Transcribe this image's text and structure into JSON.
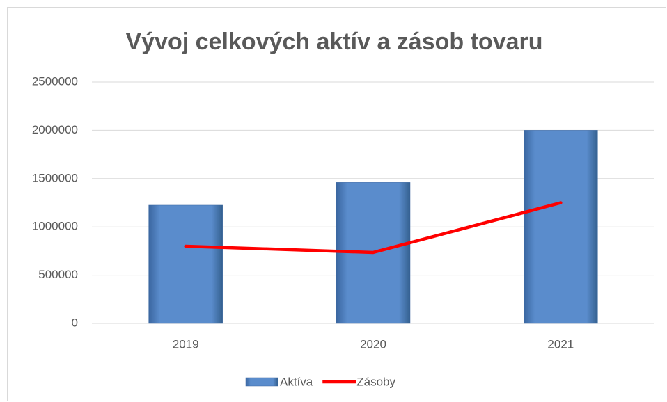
{
  "chart_data": {
    "type": "bar",
    "title": "Vývoj celkových aktív a zásob tovaru",
    "categories": [
      "2019",
      "2020",
      "2021"
    ],
    "series": [
      {
        "name": "Aktíva",
        "type": "bar",
        "color": "#4f81bd",
        "values": [
          1225000,
          1460000,
          2000000
        ]
      },
      {
        "name": "Zásoby",
        "type": "line",
        "color": "#ff0000",
        "values": [
          800000,
          735000,
          1250000
        ]
      }
    ],
    "ylim": [
      0,
      2500000
    ],
    "yticks": [
      0,
      500000,
      1000000,
      1500000,
      2000000,
      2500000
    ],
    "grid": true,
    "legend": "bottom"
  }
}
